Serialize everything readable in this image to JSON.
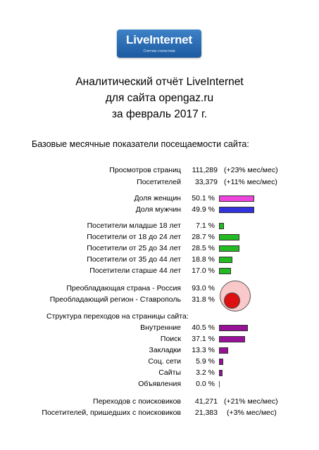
{
  "logo": {
    "brand": "LiveInternet",
    "tagline": "Счетчик статистики"
  },
  "title": {
    "line1": "Аналитический отчёт LiveInternet",
    "line2": "для сайта opengaz.ru",
    "line3": "за февраль 2017 г."
  },
  "section_title": "Базовые месячные показатели посещаемости сайта:",
  "traffic": [
    {
      "label": "Просмотров страниц",
      "value": "111,289",
      "change": "(+23% мес/мес)"
    },
    {
      "label": "Посетителей",
      "value": "33,379",
      "change": "(+11% мес/мес)"
    }
  ],
  "gender": [
    {
      "label": "Доля женщин",
      "value": "50.1 %",
      "pct": 50.1,
      "color": "#ee44dd"
    },
    {
      "label": "Доля мужчин",
      "value": "49.9 %",
      "pct": 49.9,
      "color": "#3333dd"
    }
  ],
  "ages": [
    {
      "label": "Посетители младше 18 лет",
      "value": "7.1 %",
      "pct": 7.1,
      "color": "#22bb22"
    },
    {
      "label": "Посетители от 18 до 24 лет",
      "value": "28.7 %",
      "pct": 28.7,
      "color": "#22bb22"
    },
    {
      "label": "Посетители от 25 до 34 лет",
      "value": "28.5 %",
      "pct": 28.5,
      "color": "#22bb22"
    },
    {
      "label": "Посетители от 35 до 44 лет",
      "value": "18.8 %",
      "pct": 18.8,
      "color": "#22bb22"
    },
    {
      "label": "Посетители старше 44 лет",
      "value": "17.0 %",
      "pct": 17.0,
      "color": "#22bb22"
    }
  ],
  "geo": [
    {
      "label": "Преобладающая страна - Россия",
      "value": "93.0 %",
      "pct": 93.0,
      "color": "#f9c8c8"
    },
    {
      "label": "Преобладающий регион - Ставрополь",
      "value": "31.8 %",
      "pct": 31.8,
      "color": "#dd1111"
    }
  ],
  "sources_title": "Структура переходов на страницы сайта:",
  "sources": [
    {
      "label": "Внутренние",
      "value": "40.5 %",
      "pct": 40.5,
      "color": "#991199"
    },
    {
      "label": "Поиск",
      "value": "37.1 %",
      "pct": 37.1,
      "color": "#991199"
    },
    {
      "label": "Закладки",
      "value": "13.3 %",
      "pct": 13.3,
      "color": "#991199"
    },
    {
      "label": "Соц. сети",
      "value": "5.9 %",
      "pct": 5.9,
      "color": "#991199"
    },
    {
      "label": "Сайты",
      "value": "3.2 %",
      "pct": 3.2,
      "color": "#991199"
    },
    {
      "label": "Объявления",
      "value": "0.0 %",
      "pct": 0.0,
      "color": "#991199"
    }
  ],
  "search": [
    {
      "label": "Переходов с поисковиков",
      "value": "41,271",
      "change": "(+21% мес/мес)"
    },
    {
      "label": "Посетителей, пришедших с поисковиков",
      "value": "21,383",
      "change": "(+3% мес/мес)"
    }
  ]
}
